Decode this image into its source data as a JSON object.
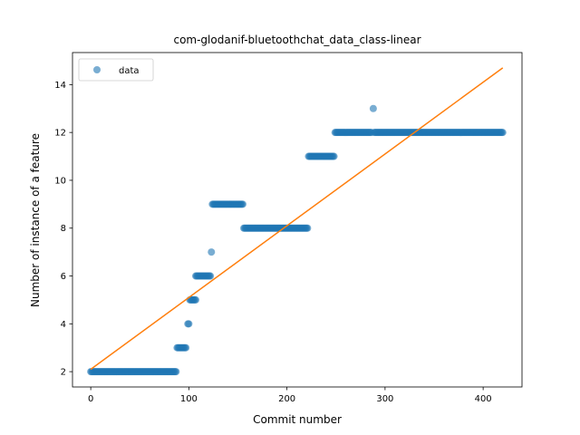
{
  "chart_data": {
    "type": "scatter",
    "title": "com-glodanif-bluetoothchat_data_class-linear",
    "xlabel": "Commit number",
    "ylabel": "Number of instance of a feature",
    "xlim": [
      -18.6,
      439.6
    ],
    "ylim": [
      1.36,
      15.34
    ],
    "xticks": [
      0,
      100,
      200,
      300,
      400
    ],
    "yticks": [
      2,
      4,
      6,
      8,
      10,
      12,
      14
    ],
    "grid": false,
    "legend": {
      "position": "top-left",
      "entries": [
        "data"
      ]
    },
    "colors": {
      "data": "#1f77b4",
      "fit": "#ff7f0e"
    },
    "series": [
      {
        "name": "data",
        "kind": "scatter",
        "segments": [
          {
            "x_start": 0,
            "x_end": 87,
            "y": 2
          },
          {
            "x_start": 88,
            "x_end": 97,
            "y": 3
          },
          {
            "x_start": 99,
            "x_end": 100,
            "y": 4
          },
          {
            "x_start": 101,
            "x_end": 107,
            "y": 5
          },
          {
            "x_start": 107,
            "x_end": 122,
            "y": 6
          },
          {
            "x_start": 123,
            "x_end": 123,
            "y": 7
          },
          {
            "x_start": 124,
            "x_end": 155,
            "y": 9
          },
          {
            "x_start": 156,
            "x_end": 221,
            "y": 8
          },
          {
            "x_start": 222,
            "x_end": 248,
            "y": 11
          },
          {
            "x_start": 249,
            "x_end": 286,
            "y": 12
          },
          {
            "x_start": 288,
            "x_end": 288,
            "y": 13
          },
          {
            "x_start": 289,
            "x_end": 420,
            "y": 12
          }
        ]
      },
      {
        "name": "",
        "kind": "line",
        "x": [
          0,
          420
        ],
        "y": [
          2.1,
          14.7
        ]
      }
    ]
  }
}
